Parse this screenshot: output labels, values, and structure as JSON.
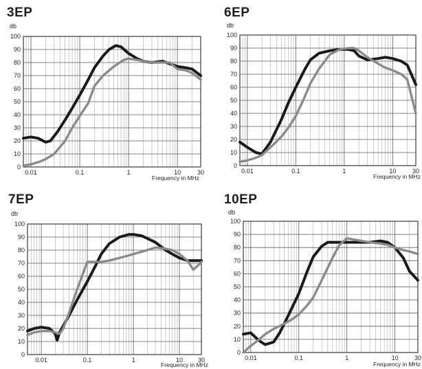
{
  "chart_data": [
    {
      "type": "line",
      "title": "3EP",
      "ylabel": "db",
      "xlabel": "Frequency in MHz",
      "xscale": "log",
      "xlim": [
        0.007,
        30
      ],
      "ylim": [
        0,
        100
      ],
      "x_ticks": [
        "0.01",
        "0.1",
        "1",
        "10",
        "30"
      ],
      "y_ticks": [
        "0",
        "10",
        "20",
        "30",
        "40",
        "50",
        "60",
        "70",
        "80",
        "90",
        "100"
      ],
      "grid": true,
      "series": [
        {
          "color": "#1a1a1a",
          "points": [
            [
              0.007,
              22
            ],
            [
              0.01,
              23
            ],
            [
              0.014,
              22
            ],
            [
              0.02,
              19
            ],
            [
              0.025,
              20
            ],
            [
              0.035,
              27
            ],
            [
              0.05,
              36
            ],
            [
              0.07,
              45
            ],
            [
              0.1,
              55
            ],
            [
              0.15,
              67
            ],
            [
              0.2,
              76
            ],
            [
              0.3,
              85
            ],
            [
              0.4,
              90
            ],
            [
              0.55,
              93
            ],
            [
              0.7,
              92
            ],
            [
              1.0,
              87
            ],
            [
              1.5,
              83
            ],
            [
              2,
              81
            ],
            [
              3,
              80
            ],
            [
              5,
              81
            ],
            [
              7,
              79
            ],
            [
              10,
              77
            ],
            [
              15,
              76
            ],
            [
              20,
              75
            ],
            [
              30,
              70
            ]
          ]
        },
        {
          "color": "#8a8a8a",
          "points": [
            [
              0.007,
              1
            ],
            [
              0.01,
              2
            ],
            [
              0.015,
              4
            ],
            [
              0.02,
              6
            ],
            [
              0.03,
              10
            ],
            [
              0.05,
              20
            ],
            [
              0.07,
              30
            ],
            [
              0.1,
              39
            ],
            [
              0.15,
              49
            ],
            [
              0.2,
              62
            ],
            [
              0.3,
              70
            ],
            [
              0.5,
              77
            ],
            [
              0.8,
              82
            ],
            [
              1.0,
              83
            ],
            [
              1.5,
              82
            ],
            [
              2,
              81
            ],
            [
              3,
              80
            ],
            [
              5,
              80
            ],
            [
              7,
              80
            ],
            [
              10,
              75
            ],
            [
              15,
              74
            ],
            [
              20,
              72
            ],
            [
              30,
              67
            ]
          ]
        }
      ]
    },
    {
      "type": "line",
      "title": "6EP",
      "ylabel": "db",
      "xlabel": "Frequency in MHz",
      "xscale": "log",
      "xlim": [
        0.007,
        30
      ],
      "ylim": [
        0,
        100
      ],
      "x_ticks": [
        "0.01",
        "0.1",
        "1",
        "10",
        "30"
      ],
      "y_ticks": [
        "0",
        "10",
        "20",
        "30",
        "40",
        "50",
        "60",
        "70",
        "80",
        "90",
        "100"
      ],
      "grid": true,
      "series": [
        {
          "color": "#1a1a1a",
          "points": [
            [
              0.007,
              18
            ],
            [
              0.01,
              14
            ],
            [
              0.015,
              10
            ],
            [
              0.02,
              9
            ],
            [
              0.03,
              18
            ],
            [
              0.05,
              35
            ],
            [
              0.07,
              48
            ],
            [
              0.1,
              60
            ],
            [
              0.15,
              73
            ],
            [
              0.2,
              81
            ],
            [
              0.3,
              86
            ],
            [
              0.5,
              88
            ],
            [
              0.8,
              89
            ],
            [
              1.2,
              89
            ],
            [
              1.6,
              88
            ],
            [
              2,
              84
            ],
            [
              3,
              81
            ],
            [
              5,
              82
            ],
            [
              7,
              83
            ],
            [
              10,
              82
            ],
            [
              15,
              80
            ],
            [
              20,
              77
            ],
            [
              30,
              62
            ]
          ]
        },
        {
          "color": "#8a8a8a",
          "points": [
            [
              0.007,
              3
            ],
            [
              0.01,
              4
            ],
            [
              0.015,
              6
            ],
            [
              0.02,
              8
            ],
            [
              0.03,
              14
            ],
            [
              0.05,
              22
            ],
            [
              0.07,
              29
            ],
            [
              0.1,
              38
            ],
            [
              0.15,
              52
            ],
            [
              0.2,
              63
            ],
            [
              0.3,
              74
            ],
            [
              0.5,
              85
            ],
            [
              0.8,
              89
            ],
            [
              1.2,
              90
            ],
            [
              1.6,
              90
            ],
            [
              2,
              88
            ],
            [
              3,
              83
            ],
            [
              5,
              78
            ],
            [
              7,
              75
            ],
            [
              10,
              73
            ],
            [
              15,
              70
            ],
            [
              20,
              66
            ],
            [
              30,
              40
            ]
          ]
        }
      ]
    },
    {
      "type": "line",
      "title": "7EP",
      "ylabel": "db",
      "xlabel": "Frequency in MHz",
      "xscale": "log",
      "xlim": [
        0.005,
        30
      ],
      "ylim": [
        0,
        100
      ],
      "x_ticks": [
        "0.01",
        "0.1",
        "1",
        "10",
        "30"
      ],
      "y_ticks": [
        "0",
        "10",
        "20",
        "30",
        "40",
        "50",
        "60",
        "70",
        "80",
        "90",
        "100"
      ],
      "grid": true,
      "series": [
        {
          "color": "#1a1a1a",
          "points": [
            [
              0.005,
              18
            ],
            [
              0.007,
              20
            ],
            [
              0.01,
              21
            ],
            [
              0.015,
              20
            ],
            [
              0.02,
              16
            ],
            [
              0.022,
              11
            ],
            [
              0.025,
              17
            ],
            [
              0.03,
              22
            ],
            [
              0.04,
              30
            ],
            [
              0.06,
              42
            ],
            [
              0.1,
              56
            ],
            [
              0.15,
              68
            ],
            [
              0.2,
              77
            ],
            [
              0.3,
              85
            ],
            [
              0.5,
              90
            ],
            [
              0.8,
              92
            ],
            [
              1,
              92
            ],
            [
              1.5,
              91
            ],
            [
              2,
              89
            ],
            [
              3,
              86
            ],
            [
              5,
              80
            ],
            [
              7,
              77
            ],
            [
              10,
              74
            ],
            [
              15,
              72
            ],
            [
              20,
              72
            ],
            [
              30,
              72
            ]
          ]
        },
        {
          "color": "#8a8a8a",
          "points": [
            [
              0.005,
              15
            ],
            [
              0.007,
              17
            ],
            [
              0.01,
              18
            ],
            [
              0.015,
              18
            ],
            [
              0.02,
              17
            ],
            [
              0.025,
              16
            ],
            [
              0.03,
              20
            ],
            [
              0.04,
              32
            ],
            [
              0.06,
              50
            ],
            [
              0.08,
              62
            ],
            [
              0.1,
              71
            ],
            [
              0.15,
              71
            ],
            [
              0.2,
              71
            ],
            [
              0.3,
              72
            ],
            [
              0.5,
              74
            ],
            [
              0.8,
              76
            ],
            [
              1,
              77
            ],
            [
              2,
              80
            ],
            [
              3,
              82
            ],
            [
              5,
              81
            ],
            [
              7,
              80
            ],
            [
              10,
              77
            ],
            [
              15,
              72
            ],
            [
              20,
              65
            ],
            [
              25,
              68
            ],
            [
              30,
              71
            ]
          ]
        }
      ]
    },
    {
      "type": "line",
      "title": "10EP",
      "ylabel": "db",
      "xlabel": "Frequency in MHz",
      "xscale": "log",
      "xlim": [
        0.007,
        30
      ],
      "ylim": [
        0,
        100
      ],
      "x_ticks": [
        "0.01",
        "0.1",
        "1",
        "10",
        "30"
      ],
      "y_ticks": [
        "0",
        "10",
        "20",
        "30",
        "40",
        "50",
        "60",
        "70",
        "80",
        "90",
        "100"
      ],
      "grid": true,
      "series": [
        {
          "color": "#1a1a1a",
          "points": [
            [
              0.007,
              14
            ],
            [
              0.01,
              15
            ],
            [
              0.015,
              9
            ],
            [
              0.02,
              6
            ],
            [
              0.03,
              8
            ],
            [
              0.04,
              15
            ],
            [
              0.06,
              28
            ],
            [
              0.1,
              45
            ],
            [
              0.15,
              62
            ],
            [
              0.2,
              73
            ],
            [
              0.3,
              81
            ],
            [
              0.4,
              84
            ],
            [
              0.6,
              84
            ],
            [
              1,
              84
            ],
            [
              2,
              84
            ],
            [
              3,
              84
            ],
            [
              5,
              85
            ],
            [
              7,
              84
            ],
            [
              10,
              80
            ],
            [
              15,
              72
            ],
            [
              20,
              62
            ],
            [
              30,
              55
            ]
          ]
        },
        {
          "color": "#8a8a8a",
          "points": [
            [
              0.007,
              0
            ],
            [
              0.01,
              5
            ],
            [
              0.015,
              10
            ],
            [
              0.02,
              14
            ],
            [
              0.03,
              18
            ],
            [
              0.05,
              22
            ],
            [
              0.07,
              25
            ],
            [
              0.1,
              29
            ],
            [
              0.15,
              36
            ],
            [
              0.2,
              42
            ],
            [
              0.3,
              55
            ],
            [
              0.5,
              72
            ],
            [
              0.7,
              82
            ],
            [
              1,
              87
            ],
            [
              2,
              85
            ],
            [
              3,
              84
            ],
            [
              5,
              83
            ],
            [
              7,
              82
            ],
            [
              10,
              80
            ],
            [
              15,
              78
            ],
            [
              20,
              77
            ],
            [
              30,
              75
            ]
          ]
        }
      ]
    }
  ]
}
